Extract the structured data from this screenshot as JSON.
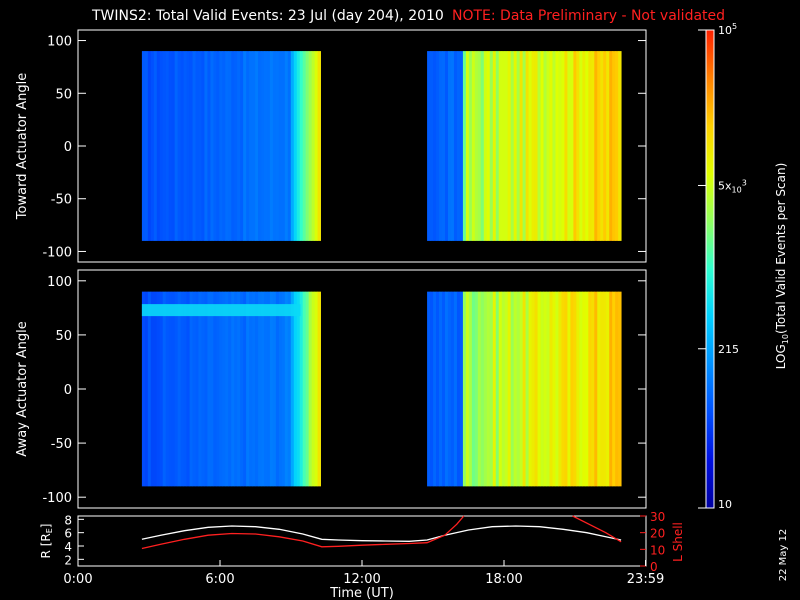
{
  "title": "TWINS2: Total Valid Events: 23 Jul (day 204), 2010",
  "note": "NOTE: Data Preliminary - Not validated",
  "date_stamp": "22 May 12",
  "chart_data": [
    {
      "type": "heatmap",
      "name": "toward",
      "ylabel": "Toward Actuator Angle",
      "ylim": [
        -110,
        110
      ],
      "yticks": [
        "100",
        "50",
        "0",
        "-50",
        "-100"
      ],
      "ytick_values": [
        100,
        50,
        0,
        -50,
        -100
      ],
      "xlim": [
        0,
        24
      ],
      "data_blocks": [
        {
          "start_h": 2.7,
          "end_h": 10.25,
          "angle_range": [
            -90,
            90
          ]
        },
        {
          "start_h": 14.75,
          "end_h": 22.95,
          "angle_range": [
            -90,
            90
          ]
        }
      ],
      "band_feature": null
    },
    {
      "type": "heatmap",
      "name": "away",
      "ylabel": "Away Actuator Angle",
      "ylim": [
        -110,
        110
      ],
      "yticks": [
        "100",
        "50",
        "0",
        "-50",
        "-100"
      ],
      "ytick_values": [
        100,
        50,
        0,
        -50,
        -100
      ],
      "xlim": [
        0,
        24
      ],
      "data_blocks": [
        {
          "start_h": 2.7,
          "end_h": 10.25,
          "angle_range": [
            -90,
            90
          ]
        },
        {
          "start_h": 14.75,
          "end_h": 22.95,
          "angle_range": [
            -90,
            90
          ]
        }
      ],
      "band_feature": {
        "start_h": 2.7,
        "end_h": 9.4,
        "angle": 72
      }
    },
    {
      "type": "line",
      "name": "orbit",
      "xlabel": "Time (UT)",
      "xticks": [
        "0:00",
        "6:00",
        "12:00",
        "18:00",
        "23:59"
      ],
      "xtick_values": [
        0,
        6,
        12,
        18,
        23.98
      ],
      "xlim": [
        0,
        24
      ],
      "ylabel_left": "R [R",
      "ylabel_left_sub": "E",
      "ylabel_left_end": "]",
      "ylim_left": [
        1,
        8.5
      ],
      "yticks_left": [
        "8",
        "6",
        "4",
        "2"
      ],
      "ytick_values_left": [
        8,
        6,
        4,
        2
      ],
      "ylabel_right": "L Shell",
      "ylim_right": [
        0,
        30
      ],
      "yticks_right": [
        "30",
        "20",
        "10",
        "0"
      ],
      "ytick_values_right": [
        30,
        20,
        10,
        0
      ],
      "series": [
        {
          "name": "R",
          "axis": "left",
          "color": "#ffffff",
          "x": [
            2.7,
            3.5,
            4.5,
            5.5,
            6.5,
            7.5,
            8.5,
            9.5,
            10.3,
            11,
            12,
            13,
            14,
            14.75,
            15.5,
            16.5,
            17.5,
            18.5,
            19.5,
            20.5,
            21.5,
            22.3,
            22.95
          ],
          "values": [
            5.0,
            5.6,
            6.3,
            6.8,
            7.0,
            6.9,
            6.5,
            5.8,
            5.0,
            4.9,
            4.8,
            4.75,
            4.7,
            4.9,
            5.6,
            6.4,
            6.9,
            7.0,
            6.9,
            6.5,
            6.0,
            5.4,
            4.9
          ]
        },
        {
          "name": "L Shell",
          "axis": "right",
          "color": "#ff2020",
          "x": [
            2.7,
            3.5,
            4.5,
            5.5,
            6.5,
            7.5,
            8.5,
            9.5,
            10.3,
            11,
            12,
            13,
            14,
            14.75,
            15.5,
            16.0,
            16.3
          ],
          "values": [
            10.5,
            13,
            16,
            18.5,
            19.5,
            19.2,
            17.5,
            15,
            11.5,
            11.8,
            12.5,
            13,
            13.5,
            14,
            18.5,
            25,
            31
          ]
        },
        {
          "name": "L Shell late",
          "axis": "right",
          "color": "#ff2020",
          "x": [
            20.9,
            21.6,
            22.3,
            22.95
          ],
          "values": [
            31,
            25,
            20,
            14.5
          ]
        }
      ]
    }
  ],
  "colorbar": {
    "label": "LOG",
    "label_sub": "10",
    "label_rest": "(Total Valid Events per Scan)",
    "ticks": [
      {
        "value": 100000,
        "base": "10",
        "sup": "5",
        "sub": ""
      },
      {
        "value": 5000,
        "base": "5x",
        "sup": "3",
        "sub": "10"
      },
      {
        "value": 215,
        "base": "215",
        "sup": "",
        "sub": ""
      },
      {
        "value": 10,
        "base": "10",
        "sup": "",
        "sub": ""
      }
    ],
    "range": [
      10,
      100000
    ],
    "colors": [
      "#0000a0",
      "#0010e0",
      "#0050ff",
      "#0090ff",
      "#00d0ff",
      "#30ffd0",
      "#90ff60",
      "#e0ff00",
      "#ffd000",
      "#ff8000",
      "#ff2000"
    ]
  }
}
